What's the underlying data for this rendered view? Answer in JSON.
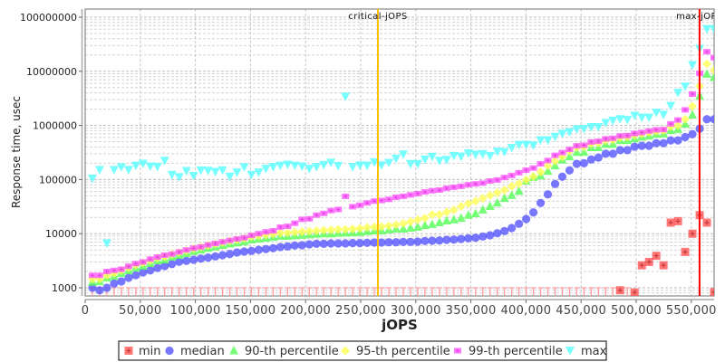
{
  "chart_data": {
    "type": "scatter",
    "title": "",
    "xlabel": "jOPS",
    "ylabel": "Response time, usec",
    "x_scale": "linear",
    "y_scale": "log",
    "xlim": [
      0,
      571000
    ],
    "ylim": [
      700,
      140000000
    ],
    "grid": true,
    "legend_placement": "bottom",
    "x_ticks": [
      {
        "value": 0,
        "label": "0"
      },
      {
        "value": 50000,
        "label": "50,000"
      },
      {
        "value": 100000,
        "label": "100,000"
      },
      {
        "value": 150000,
        "label": "150,000"
      },
      {
        "value": 200000,
        "label": "200,000"
      },
      {
        "value": 250000,
        "label": "250,000"
      },
      {
        "value": 300000,
        "label": "300,000"
      },
      {
        "value": 350000,
        "label": "350,000"
      },
      {
        "value": 400000,
        "label": "400,000"
      },
      {
        "value": 450000,
        "label": "450,000"
      },
      {
        "value": 500000,
        "label": "500,000"
      },
      {
        "value": 550000,
        "label": "550,000"
      }
    ],
    "y_ticks": [
      {
        "value": 1000,
        "label": "1000"
      },
      {
        "value": 10000,
        "label": "10000"
      },
      {
        "value": 100000,
        "label": "100000"
      },
      {
        "value": 1000000,
        "label": "1000000"
      },
      {
        "value": 10000000,
        "label": "10000000"
      },
      {
        "value": 100000000,
        "label": "100000000"
      }
    ],
    "reference_lines": [
      {
        "name": "critical-jOPS",
        "label": "critical-jOPS",
        "x": 265600,
        "color": "#ffc000"
      },
      {
        "name": "max-jOPS",
        "label": "max-jOPS",
        "x": 557500,
        "color": "#ff0000"
      }
    ],
    "x": [
      6560,
      13120,
      19680,
      26240,
      32800,
      39360,
      45920,
      52480,
      59040,
      65600,
      72160,
      78720,
      85280,
      91840,
      98400,
      104960,
      111520,
      118080,
      124640,
      131200,
      137760,
      144320,
      150880,
      157440,
      164000,
      170560,
      177120,
      183680,
      190240,
      196800,
      203360,
      209920,
      216480,
      223040,
      229600,
      236160,
      242720,
      249280,
      255840,
      262400,
      268960,
      275520,
      282080,
      288640,
      295200,
      301760,
      308320,
      314880,
      321440,
      328000,
      334560,
      341120,
      347680,
      354240,
      360800,
      367360,
      373920,
      380480,
      387040,
      393600,
      400160,
      406720,
      413280,
      419840,
      426400,
      432960,
      439520,
      446080,
      452640,
      459200,
      465760,
      472320,
      478880,
      485440,
      492000,
      498560,
      505120,
      511680,
      518240,
      524800,
      531360,
      537920,
      544480,
      551040,
      557600,
      564160,
      570720
    ],
    "series": [
      {
        "name": "min",
        "marker": "square",
        "color": "#ff5555",
        "values": [
          "<1000",
          "<1000",
          "<1000",
          "<1000",
          "<1000",
          "<1000",
          "<1000",
          "<1000",
          "<1000",
          "<1000",
          "<1000",
          "<1000",
          "<1000",
          "<1000",
          "<1000",
          "<1000",
          "<1000",
          "<1000",
          "<1000",
          "<1000",
          "<1000",
          "<1000",
          "<1000",
          "<1000",
          "<1000",
          "<1000",
          "<1000",
          "<1000",
          "<1000",
          "<1000",
          "<1000",
          "<1000",
          "<1000",
          "<1000",
          "<1000",
          "<1000",
          "<1000",
          "<1000",
          "<1000",
          "<1000",
          "<1000",
          "<1000",
          "<1000",
          "<1000",
          "<1000",
          "<1000",
          "<1000",
          "<1000",
          "<1000",
          "<1000",
          "<1000",
          "<1000",
          "<1000",
          "<1000",
          "<1000",
          "<1000",
          "<1000",
          "<1000",
          "<1000",
          "<1000",
          "<1000",
          "<1000",
          "<1000",
          "<1000",
          "<1000",
          "<1000",
          "<1000",
          "<1000",
          "<1000",
          "<1000",
          "<1000",
          "<1000",
          "<1000",
          900,
          "<1000",
          820,
          2600,
          3000,
          3900,
          2600,
          16000,
          17000,
          4600,
          10000,
          22000,
          16000,
          830
        ]
      },
      {
        "name": "median",
        "marker": "circle",
        "color": "#5555ff",
        "values": [
          1000,
          900,
          1000,
          1200,
          1310,
          1530,
          1710,
          1920,
          2100,
          2330,
          2520,
          2750,
          3020,
          3140,
          3300,
          3470,
          3610,
          3800,
          4000,
          4200,
          4500,
          4670,
          4800,
          5030,
          5200,
          5400,
          5670,
          5800,
          6040,
          6100,
          6350,
          6500,
          6500,
          6600,
          6600,
          6600,
          6700,
          6700,
          6780,
          6860,
          6860,
          6940,
          6940,
          7040,
          7040,
          7130,
          7320,
          7410,
          7490,
          7690,
          7790,
          8000,
          8220,
          8410,
          8870,
          9330,
          10190,
          11170,
          12700,
          15200,
          18660,
          24700,
          36900,
          53400,
          82800,
          113000,
          148000,
          195000,
          200000,
          235000,
          255000,
          300000,
          300000,
          350000,
          350000,
          405000,
          420000,
          420000,
          470000,
          470000,
          530000,
          530000,
          610000,
          690000,
          870000,
          1300000,
          1300000
        ]
      },
      {
        "name": "90-th percentile",
        "marker": "triangle-up",
        "color": "#55ff55",
        "values": [
          1270,
          1300,
          1520,
          1640,
          1850,
          2080,
          2330,
          2520,
          2830,
          3180,
          3300,
          3700,
          4000,
          4300,
          4700,
          5000,
          5400,
          5700,
          6100,
          6500,
          6800,
          7100,
          7700,
          8000,
          8300,
          8600,
          9000,
          9000,
          9200,
          9400,
          9600,
          9800,
          10000,
          10000,
          10200,
          10300,
          10400,
          10600,
          11000,
          11300,
          11300,
          11800,
          12200,
          12200,
          12700,
          13200,
          14200,
          14800,
          16000,
          17300,
          18000,
          19400,
          22000,
          23500,
          27500,
          32000,
          37000,
          45000,
          51000,
          61000,
          94000,
          110000,
          118000,
          143000,
          180000,
          230000,
          265000,
          320000,
          320000,
          390000,
          390000,
          450000,
          450000,
          530000,
          530000,
          570000,
          610000,
          640000,
          690000,
          700000,
          810000,
          850000,
          1060000,
          1560000,
          3500000,
          8900000,
          7700000
        ]
      },
      {
        "name": "95-th percentile",
        "marker": "diamond",
        "color": "#ffff55",
        "values": [
          1450,
          1450,
          1700,
          1850,
          2100,
          2350,
          2650,
          2900,
          3200,
          3550,
          3750,
          4150,
          4500,
          4850,
          5300,
          5650,
          6100,
          6450,
          6900,
          7350,
          7700,
          8100,
          8800,
          9100,
          9500,
          9900,
          10300,
          10400,
          10600,
          10900,
          11100,
          11300,
          11600,
          11700,
          11900,
          12000,
          12200,
          12500,
          13000,
          13300,
          13500,
          14000,
          14600,
          15400,
          16600,
          18000,
          19400,
          22500,
          22500,
          25000,
          27400,
          32000,
          36000,
          40000,
          45000,
          51000,
          57000,
          64000,
          75000,
          84000,
          98000,
          114000,
          138000,
          180000,
          220000,
          265000,
          335000,
          390000,
          400000,
          460000,
          470000,
          530000,
          540000,
          600000,
          610000,
          660000,
          700000,
          740000,
          780000,
          800000,
          950000,
          1000000,
          1300000,
          2260000,
          5300000,
          13700000,
          10500000
        ]
      },
      {
        "name": "99-th percentile",
        "marker": "small-square",
        "color": "#ff55ff",
        "values": [
          1700,
          1700,
          2000,
          2100,
          2200,
          2500,
          2800,
          3000,
          3400,
          3700,
          4000,
          4200,
          4600,
          5000,
          5400,
          5700,
          6200,
          6600,
          7050,
          7500,
          8000,
          8400,
          9300,
          10000,
          10800,
          11300,
          13200,
          13700,
          15600,
          18400,
          18800,
          22000,
          23700,
          26700,
          28000,
          49000,
          31500,
          33600,
          37000,
          40000,
          41000,
          43000,
          47000,
          49000,
          52000,
          55000,
          59000,
          62000,
          64000,
          69000,
          72000,
          75000,
          80000,
          83000,
          86000,
          94000,
          98000,
          109000,
          119000,
          134000,
          149000,
          163000,
          195000,
          225000,
          280000,
          315000,
          360000,
          420000,
          430000,
          495000,
          510000,
          565000,
          580000,
          640000,
          650000,
          710000,
          740000,
          790000,
          830000,
          840000,
          1070000,
          1260000,
          1940000,
          3800000,
          9200000,
          23000000,
          17800000
        ]
      },
      {
        "name": "max",
        "marker": "triangle-down",
        "color": "#55ffff",
        "values": [
          104000,
          150000,
          6600,
          150000,
          168000,
          150000,
          180000,
          195000,
          174000,
          172000,
          222000,
          122000,
          110000,
          143000,
          117000,
          147000,
          145000,
          138000,
          148000,
          113000,
          135000,
          168000,
          122000,
          135000,
          157000,
          170000,
          180000,
          188000,
          180000,
          174000,
          157000,
          170000,
          185000,
          205000,
          178000,
          3400000,
          170000,
          182000,
          180000,
          208000,
          183000,
          203000,
          243000,
          290000,
          194000,
          194000,
          233000,
          263000,
          222000,
          230000,
          272000,
          265000,
          305000,
          287000,
          294000,
          272000,
          326000,
          322000,
          384000,
          437000,
          437000,
          426000,
          530000,
          530000,
          613000,
          700000,
          750000,
          850000,
          860000,
          930000,
          930000,
          1110000,
          1220000,
          1300000,
          1260000,
          1510000,
          1390000,
          1390000,
          1710000,
          1570000,
          2300000,
          4000000,
          5200000,
          13000000,
          26000000,
          60000000,
          60000000
        ]
      }
    ]
  }
}
